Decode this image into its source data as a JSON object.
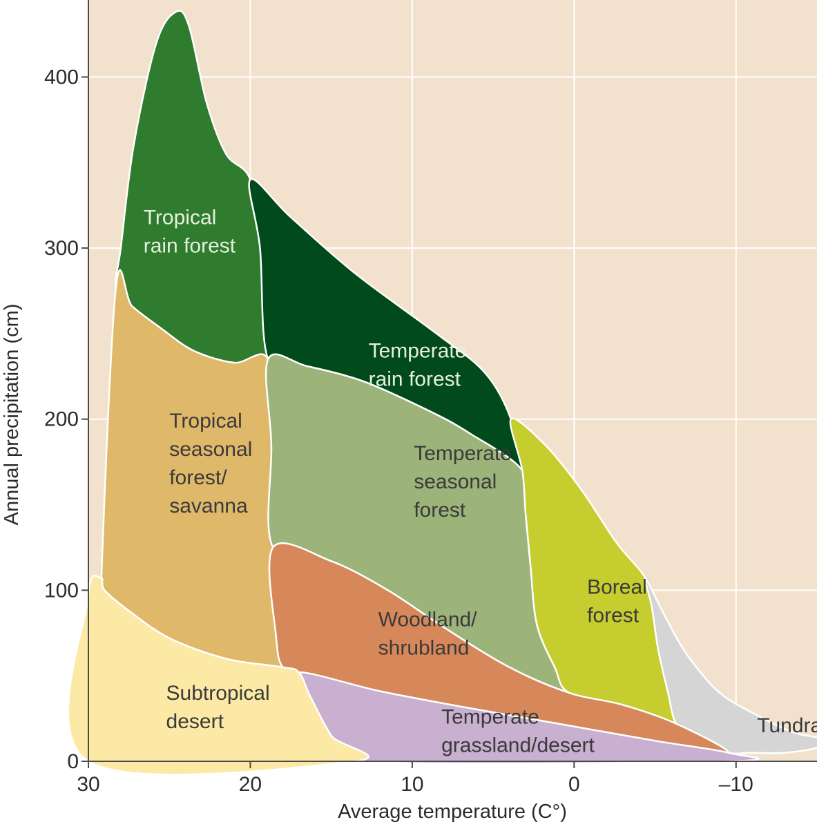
{
  "chart_data": {
    "type": "area",
    "title": "",
    "xlabel": "Average temperature (C°)",
    "ylabel": "Annual precipitation (cm)",
    "xlim": [
      30,
      -15
    ],
    "ylim": [
      0,
      445
    ],
    "x_ticks": [
      30,
      20,
      10,
      0,
      -10
    ],
    "x_tick_labels": [
      "30",
      "20",
      "10",
      "0",
      "–10"
    ],
    "y_ticks": [
      0,
      100,
      200,
      300,
      400
    ],
    "y_tick_labels": [
      "0",
      "100",
      "200",
      "300",
      "400"
    ],
    "grid": true,
    "colors": {
      "background": "#f2e2cd",
      "grid": "#ffffff",
      "axis": "#4a4a4a"
    },
    "regions": [
      {
        "id": "tropical-rain-forest",
        "label_lines": [
          "Tropical",
          "rain forest"
        ],
        "fill": "#2f7c2e",
        "text_color": "#e6f0dd",
        "label_at": [
          26.6,
          314
        ],
        "boundary": [
          [
            28.3,
            277
          ],
          [
            28.0,
            300
          ],
          [
            27.2,
            360
          ],
          [
            25.8,
            420
          ],
          [
            24.6,
            438
          ],
          [
            23.8,
            430
          ],
          [
            22.7,
            385
          ],
          [
            21.5,
            355
          ],
          [
            20.0,
            340
          ],
          [
            19.4,
            300
          ],
          [
            18.9,
            235
          ],
          [
            21.0,
            233
          ],
          [
            23.5,
            240
          ],
          [
            25.5,
            253
          ],
          [
            27.3,
            266
          ]
        ]
      },
      {
        "id": "temperate-rain-forest",
        "label_lines": [
          "Temperate",
          "rain forest"
        ],
        "fill": "#004a1c",
        "text_color": "#e6f0dd",
        "label_at": [
          12.7,
          236
        ],
        "boundary": [
          [
            20.0,
            340
          ],
          [
            17.5,
            318
          ],
          [
            13.5,
            285
          ],
          [
            8.5,
            250
          ],
          [
            5.5,
            227
          ],
          [
            3.9,
            200
          ],
          [
            3.2,
            170
          ],
          [
            6.5,
            192
          ],
          [
            9.0,
            205
          ],
          [
            13.0,
            222
          ],
          [
            16.5,
            231
          ],
          [
            18.9,
            235
          ],
          [
            19.4,
            300
          ]
        ]
      },
      {
        "id": "tropical-seasonal-forest",
        "label_lines": [
          "Tropical",
          "seasonal",
          "forest/",
          "savanna"
        ],
        "fill": "#dfb86a",
        "text_color": "#3a3a3a",
        "label_at": [
          25.0,
          195
        ],
        "boundary": [
          [
            29.2,
            107
          ],
          [
            28.3,
            277
          ],
          [
            27.3,
            266
          ],
          [
            25.5,
            253
          ],
          [
            23.5,
            240
          ],
          [
            21.0,
            233
          ],
          [
            18.9,
            235
          ],
          [
            18.7,
            185
          ],
          [
            18.6,
            125
          ],
          [
            18.4,
            72
          ],
          [
            18.0,
            55
          ],
          [
            21.5,
            60
          ],
          [
            25.0,
            72
          ],
          [
            27.5,
            88
          ],
          [
            29.0,
            100
          ]
        ]
      },
      {
        "id": "temperate-seasonal-forest",
        "label_lines": [
          "Temperate",
          "seasonal",
          "forest"
        ],
        "fill": "#9cb47a",
        "text_color": "#3a3a3a",
        "label_at": [
          9.9,
          176
        ],
        "boundary": [
          [
            18.9,
            235
          ],
          [
            16.5,
            231
          ],
          [
            13.0,
            222
          ],
          [
            9.0,
            205
          ],
          [
            6.5,
            192
          ],
          [
            3.2,
            170
          ],
          [
            3.0,
            145
          ],
          [
            2.7,
            115
          ],
          [
            2.3,
            80
          ],
          [
            1.2,
            55
          ],
          [
            0.3,
            40
          ],
          [
            4.0,
            55
          ],
          [
            8.0,
            78
          ],
          [
            11.5,
            100
          ],
          [
            15.0,
            117
          ],
          [
            18.6,
            125
          ],
          [
            18.7,
            185
          ]
        ]
      },
      {
        "id": "boreal-forest",
        "label_lines": [
          "Boreal",
          "forest"
        ],
        "fill": "#c5cd2f",
        "text_color": "#3a3a3a",
        "label_at": [
          -0.8,
          98
        ],
        "boundary": [
          [
            3.9,
            200
          ],
          [
            1.8,
            185
          ],
          [
            -0.5,
            158
          ],
          [
            -2.6,
            128
          ],
          [
            -4.4,
            107
          ],
          [
            -4.8,
            90
          ],
          [
            -5.2,
            65
          ],
          [
            -5.8,
            40
          ],
          [
            -6.3,
            22
          ],
          [
            -3.0,
            33
          ],
          [
            0.3,
            40
          ],
          [
            1.2,
            55
          ],
          [
            2.3,
            80
          ],
          [
            2.7,
            115
          ],
          [
            3.0,
            145
          ],
          [
            3.2,
            170
          ]
        ]
      },
      {
        "id": "tundra",
        "label_lines": [
          "Tundra"
        ],
        "fill": "#d5d5d5",
        "text_color": "#3a3a3a",
        "label_at": [
          -11.3,
          17
        ],
        "boundary": [
          [
            -4.4,
            107
          ],
          [
            -5.6,
            85
          ],
          [
            -7.0,
            62
          ],
          [
            -9.0,
            40
          ],
          [
            -11.5,
            26
          ],
          [
            -13.5,
            17
          ],
          [
            -15.3,
            13
          ],
          [
            -15.0,
            8
          ],
          [
            -13.0,
            5
          ],
          [
            -11.0,
            5
          ],
          [
            -9.5,
            5
          ],
          [
            -7.5,
            12
          ],
          [
            -6.3,
            22
          ],
          [
            -5.8,
            40
          ],
          [
            -5.2,
            65
          ],
          [
            -4.8,
            90
          ]
        ]
      },
      {
        "id": "woodland-shrubland",
        "label_lines": [
          "Woodland/",
          "shrubland"
        ],
        "fill": "#d7885a",
        "text_color": "#3a3a3a",
        "label_at": [
          12.1,
          79
        ],
        "boundary": [
          [
            18.6,
            125
          ],
          [
            15.0,
            117
          ],
          [
            11.5,
            100
          ],
          [
            8.0,
            78
          ],
          [
            4.0,
            55
          ],
          [
            0.3,
            40
          ],
          [
            -3.0,
            33
          ],
          [
            -6.3,
            22
          ],
          [
            -9.5,
            5
          ],
          [
            -5.0,
            12
          ],
          [
            1.0,
            22
          ],
          [
            7.0,
            32
          ],
          [
            12.0,
            41
          ],
          [
            17.0,
            52
          ],
          [
            18.0,
            55
          ],
          [
            18.4,
            72
          ]
        ]
      },
      {
        "id": "temperate-grassland-desert",
        "label_lines": [
          "Temperate",
          "grassland/desert"
        ],
        "fill": "#c9afd0",
        "text_color": "#3a3a3a",
        "label_at": [
          8.2,
          22
        ],
        "boundary": [
          [
            17.0,
            52
          ],
          [
            12.0,
            41
          ],
          [
            7.0,
            32
          ],
          [
            1.0,
            22
          ],
          [
            -5.0,
            12
          ],
          [
            -9.5,
            5
          ],
          [
            -9.5,
            0
          ],
          [
            13.6,
            0
          ],
          [
            15.0,
            15
          ],
          [
            16.3,
            38
          ]
        ]
      },
      {
        "id": "subtropical-desert",
        "label_lines": [
          "Subtropical",
          "desert"
        ],
        "fill": "#fce9a5",
        "text_color": "#3a3a3a",
        "label_at": [
          25.2,
          36
        ],
        "boundary": [
          [
            30.0,
            0
          ],
          [
            30.0,
            97
          ],
          [
            29.2,
            107
          ],
          [
            29.0,
            100
          ],
          [
            27.5,
            88
          ],
          [
            25.0,
            72
          ],
          [
            21.5,
            60
          ],
          [
            18.0,
            55
          ],
          [
            17.0,
            52
          ],
          [
            16.3,
            38
          ],
          [
            15.0,
            15
          ],
          [
            13.6,
            0
          ]
        ]
      }
    ]
  }
}
